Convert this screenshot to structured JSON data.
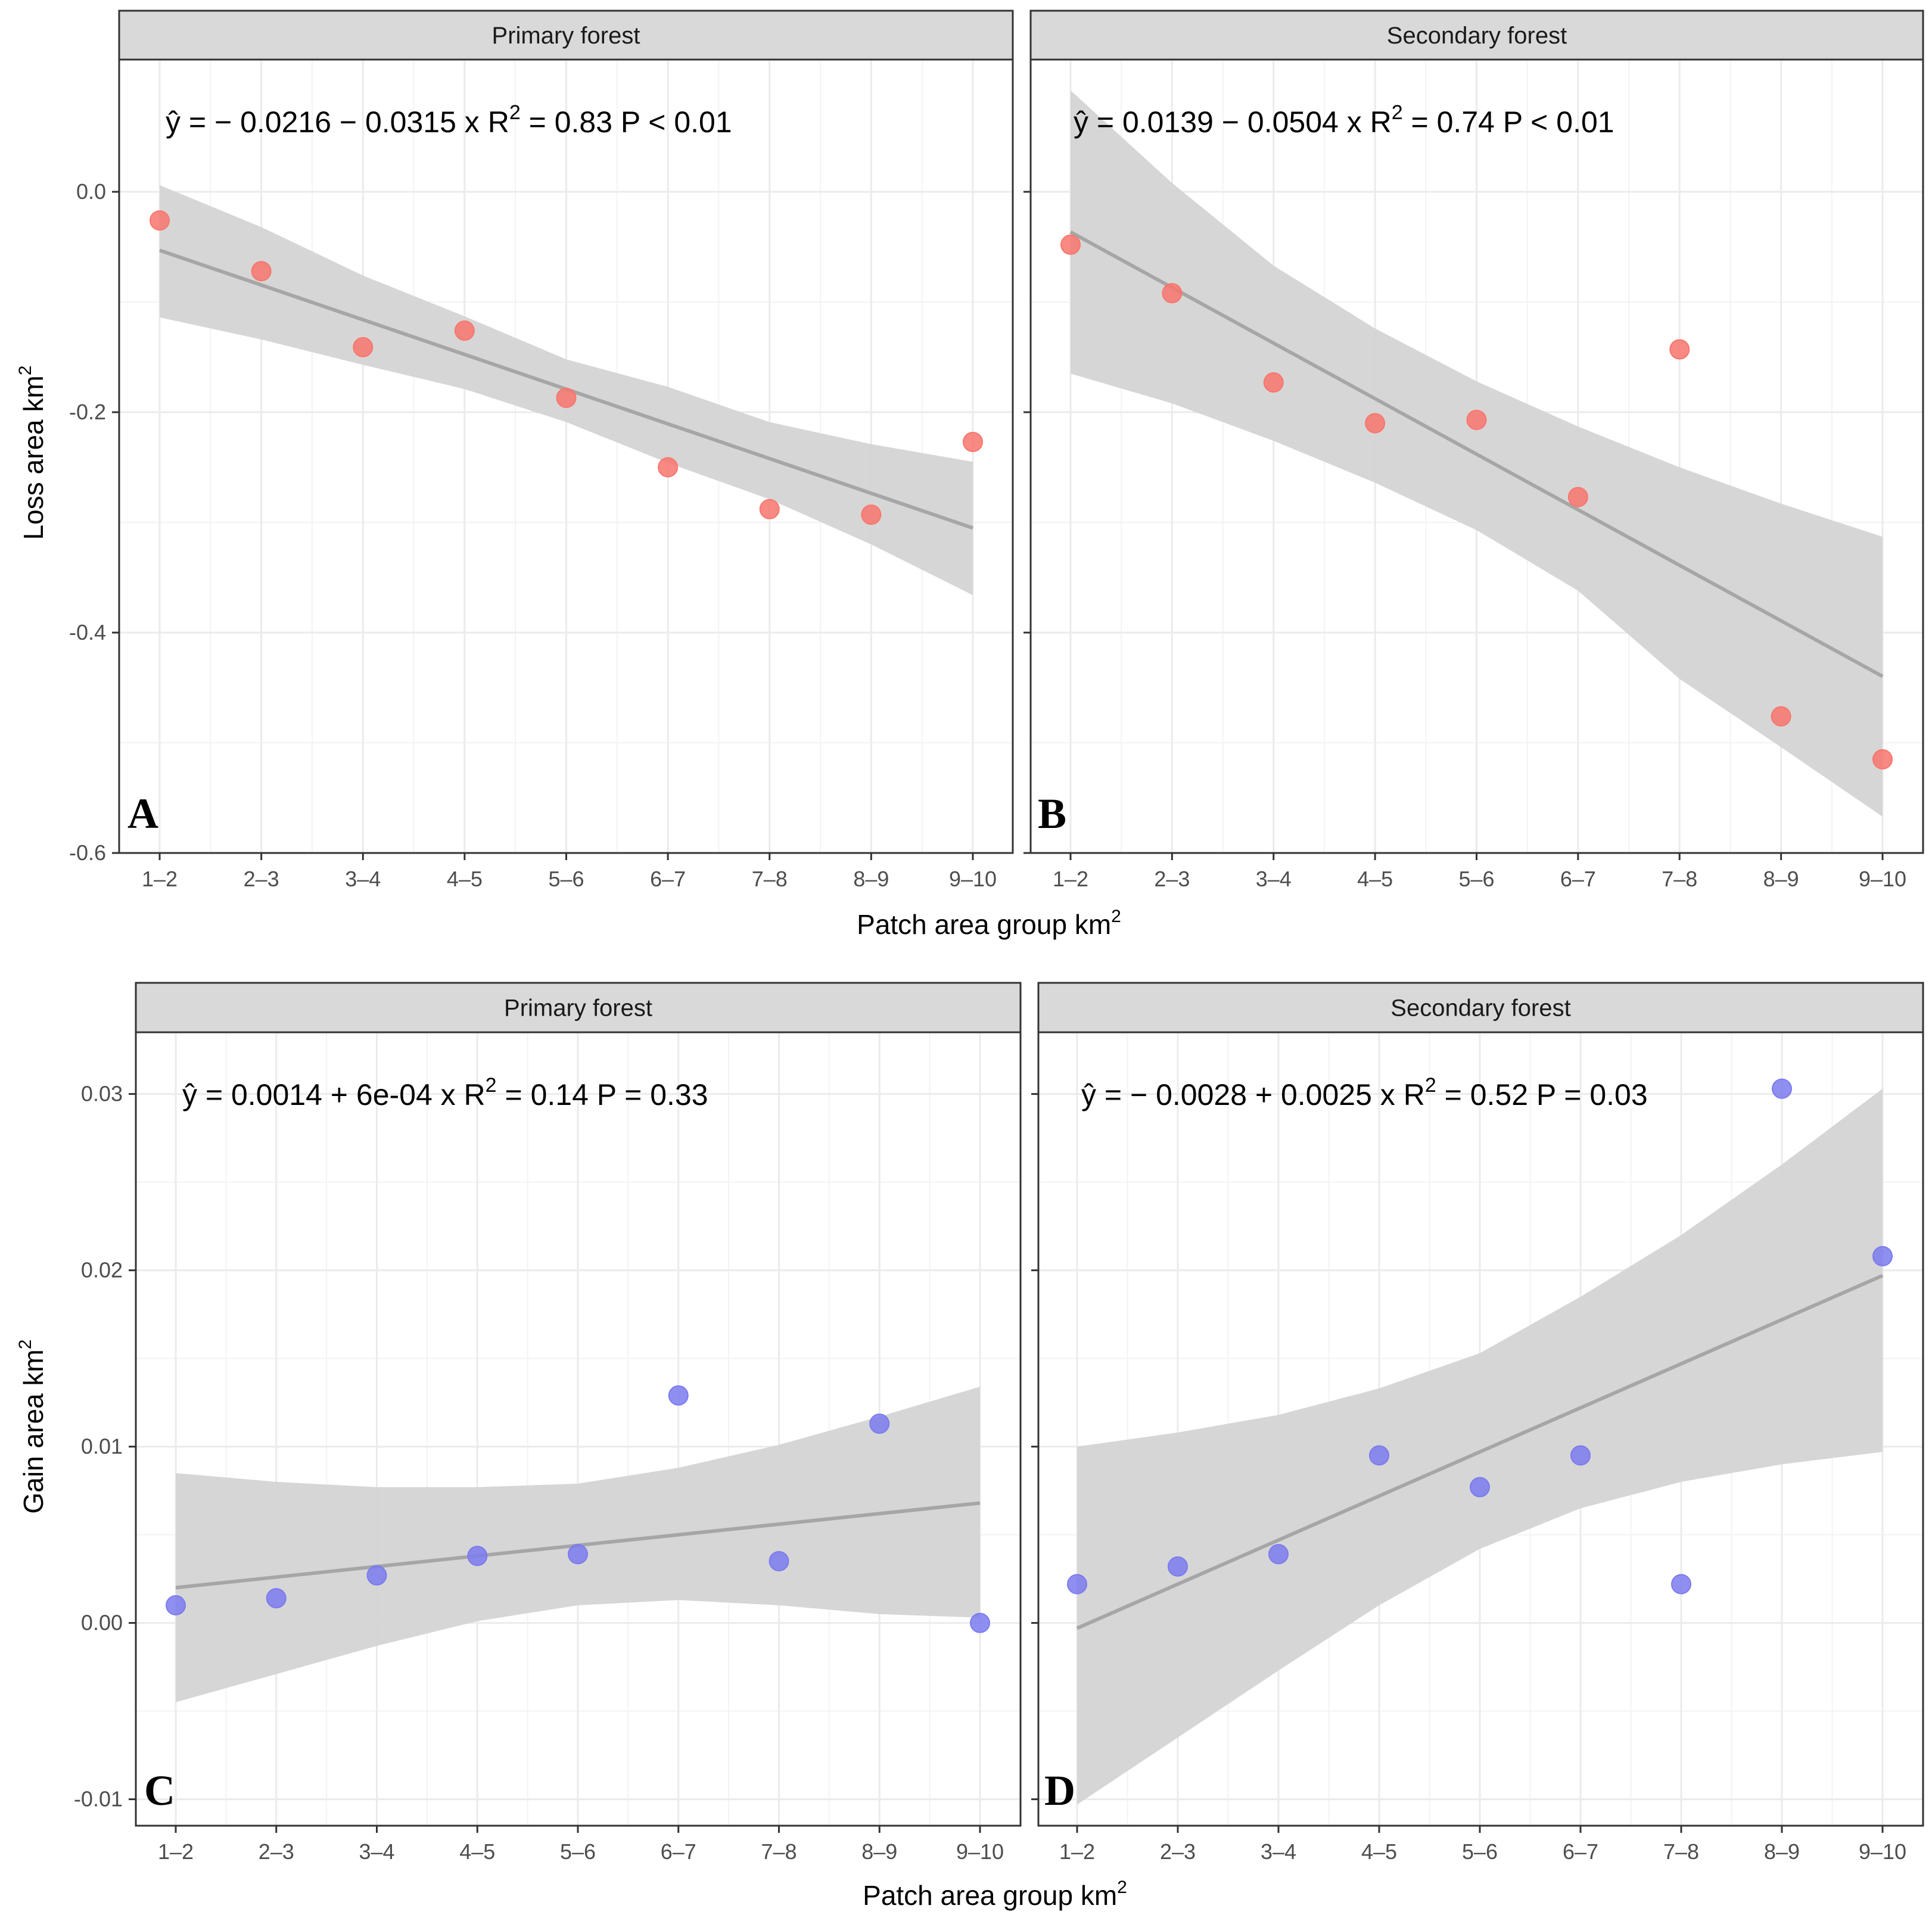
{
  "chart_data": [
    {
      "panel": "A",
      "type": "scatter",
      "title": "Primary forest",
      "equation": "ŷ = − 0.0216 − 0.0315 x   R² = 0.83   P < 0.01",
      "xlabel": "Patch area group  km²",
      "ylabel": "Loss area  km²",
      "categories": [
        "1–2",
        "2–3",
        "3–4",
        "4–5",
        "5–6",
        "6–7",
        "7–8",
        "8–9",
        "9–10"
      ],
      "values": [
        -0.026,
        -0.072,
        -0.141,
        -0.126,
        -0.187,
        -0.25,
        -0.288,
        -0.293,
        -0.227
      ],
      "fit": {
        "intercept": -0.0216,
        "slope": -0.0315
      },
      "ci_lower": [
        -0.114,
        -0.134,
        -0.157,
        -0.179,
        -0.209,
        -0.246,
        -0.279,
        -0.32,
        -0.366
      ],
      "ci_upper": [
        0.006,
        -0.032,
        -0.076,
        -0.113,
        -0.152,
        -0.177,
        -0.209,
        -0.229,
        -0.245
      ],
      "ylim": [
        -0.6,
        0.12
      ],
      "yticks": [
        -0.6,
        -0.4,
        -0.2,
        0.0
      ],
      "ytick_labels": [
        "-0.6",
        "-0.4",
        "-0.2",
        "0.0"
      ],
      "point_color": "#f8766d"
    },
    {
      "panel": "B",
      "type": "scatter",
      "title": "Secondary forest",
      "equation": "ŷ = 0.0139 − 0.0504 x   R² = 0.74   P < 0.01",
      "xlabel": "Patch area group  km²",
      "ylabel": "",
      "categories": [
        "1–2",
        "2–3",
        "3–4",
        "4–5",
        "5–6",
        "6–7",
        "7–8",
        "8–9",
        "9–10"
      ],
      "values": [
        -0.048,
        -0.092,
        -0.173,
        -0.21,
        -0.207,
        -0.277,
        -0.143,
        -0.476,
        -0.515
      ],
      "fit": {
        "intercept": 0.0139,
        "slope": -0.0504
      },
      "ci_lower": [
        -0.165,
        -0.192,
        -0.226,
        -0.264,
        -0.307,
        -0.362,
        -0.442,
        -0.504,
        -0.567
      ],
      "ci_upper": [
        0.092,
        0.008,
        -0.067,
        -0.124,
        -0.172,
        -0.213,
        -0.25,
        -0.283,
        -0.313
      ],
      "ylim": [
        -0.6,
        0.12
      ],
      "yticks": [
        -0.6,
        -0.4,
        -0.2,
        0.0
      ],
      "ytick_labels": [
        "-0.6",
        "-0.4",
        "-0.2",
        "0.0"
      ],
      "point_color": "#f8766d"
    },
    {
      "panel": "C",
      "type": "scatter",
      "title": "Primary forest",
      "equation": "ŷ = 0.0014 + 6e-04 x   R² = 0.14   P = 0.33",
      "xlabel": "Patch area group  km²",
      "ylabel": "Gain area  km²",
      "categories": [
        "1–2",
        "2–3",
        "3–4",
        "4–5",
        "5–6",
        "6–7",
        "7–8",
        "8–9",
        "9–10"
      ],
      "values": [
        0.001,
        0.0014,
        0.0027,
        0.0038,
        0.0039,
        0.0129,
        0.0035,
        0.0113,
        0.0
      ],
      "fit": {
        "intercept": 0.0014,
        "slope": 0.0006
      },
      "ci_lower": [
        -0.0045,
        -0.0029,
        -0.0013,
        0.0001,
        0.001,
        0.0013,
        0.001,
        0.0005,
        0.0003
      ],
      "ci_upper": [
        0.0085,
        0.008,
        0.0077,
        0.0077,
        0.0079,
        0.0088,
        0.0101,
        0.0117,
        0.0134
      ],
      "ylim": [
        -0.0115,
        0.0335
      ],
      "yticks": [
        -0.01,
        0.0,
        0.01,
        0.02,
        0.03
      ],
      "ytick_labels": [
        "-0.01",
        "0.00",
        "0.01",
        "0.02",
        "0.03"
      ],
      "point_color": "#7b7bef"
    },
    {
      "panel": "D",
      "type": "scatter",
      "title": "Secondary forest",
      "equation": "ŷ = − 0.0028 + 0.0025 x   R² = 0.52   P = 0.03",
      "xlabel": "Patch area group  km²",
      "ylabel": "",
      "categories": [
        "1–2",
        "2–3",
        "3–4",
        "4–5",
        "5–6",
        "6–7",
        "7–8",
        "8–9",
        "9–10"
      ],
      "values": [
        0.0022,
        0.0032,
        0.0039,
        0.0095,
        0.0077,
        0.0095,
        0.0022,
        0.0303,
        0.0208
      ],
      "fit": {
        "intercept": -0.0028,
        "slope": 0.0025
      },
      "ci_lower": [
        -0.0103,
        -0.0065,
        -0.0027,
        0.001,
        0.0042,
        0.0065,
        0.008,
        0.009,
        0.0097
      ],
      "ci_upper": [
        0.01,
        0.0108,
        0.0118,
        0.0133,
        0.0153,
        0.0185,
        0.022,
        0.026,
        0.0303
      ],
      "ylim": [
        -0.0115,
        0.0335
      ],
      "yticks": [
        -0.01,
        0.0,
        0.01,
        0.02,
        0.03
      ],
      "ytick_labels": [
        "-0.01",
        "0.00",
        "0.01",
        "0.02",
        "0.03"
      ],
      "point_color": "#7b7bef"
    }
  ],
  "axis_titles": {
    "top_x": "Patch area group  km",
    "bottom_x": "Patch area group  km",
    "top_y": "Loss area  km",
    "bottom_y": "Gain area  km",
    "superscript": "2"
  },
  "colors": {
    "strip_bg": "#d9d9d9",
    "grid": "#ebebeb",
    "ribbon": "#d4d4d4",
    "fit_line": "#a6a6a6"
  }
}
